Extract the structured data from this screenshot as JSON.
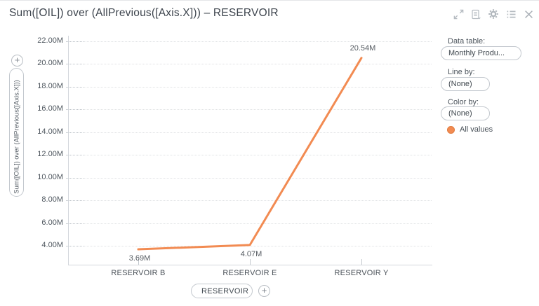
{
  "header": {
    "title": "Sum([OIL]) over (AllPrevious([Axis.X])) – RESERVOIR",
    "icons": [
      "expand-icon",
      "document-icon",
      "gear-icon",
      "list-icon",
      "close-icon"
    ]
  },
  "y_axis_selector": {
    "label": "Sum([OIL]) over (AllPrevious([Axis.X]))",
    "add_label": "+"
  },
  "x_axis_selector": {
    "label": "RESERVOIR",
    "add_label": "+"
  },
  "side_panel": {
    "data_table": {
      "label": "Data table:",
      "value": "Monthly Produ..."
    },
    "line_by": {
      "label": "Line by:",
      "value": "(None)"
    },
    "color_by": {
      "label": "Color by:",
      "value": "(None)"
    },
    "legend": {
      "label": "All values",
      "color": "#f28b52"
    }
  },
  "chart_data": {
    "type": "line",
    "title": "Sum([OIL]) over (AllPrevious([Axis.X])) – RESERVOIR",
    "categories": [
      "RESERVOIR B",
      "RESERVOIR E",
      "RESERVOIR Y"
    ],
    "values": [
      3690000,
      4070000,
      20540000
    ],
    "point_labels": [
      "3.69M",
      "4.07M",
      "20.54M"
    ],
    "label_positions": [
      "below",
      "below",
      "above"
    ],
    "xlabel": "RESERVOIR",
    "ylabel": "Sum([OIL]) over (AllPrevious([Axis.X]))",
    "y_ticks": [
      "4.00M",
      "6.00M",
      "8.00M",
      "10.00M",
      "12.00M",
      "14.00M",
      "16.00M",
      "18.00M",
      "20.00M",
      "22.00M"
    ],
    "y_tick_values": [
      4000000,
      6000000,
      8000000,
      10000000,
      12000000,
      14000000,
      16000000,
      18000000,
      20000000,
      22000000
    ],
    "ylim": [
      2400000,
      22500000
    ],
    "grid": "horizontal-dotted",
    "legend_entries": [
      "All values"
    ],
    "line_color": "#f28b52"
  }
}
